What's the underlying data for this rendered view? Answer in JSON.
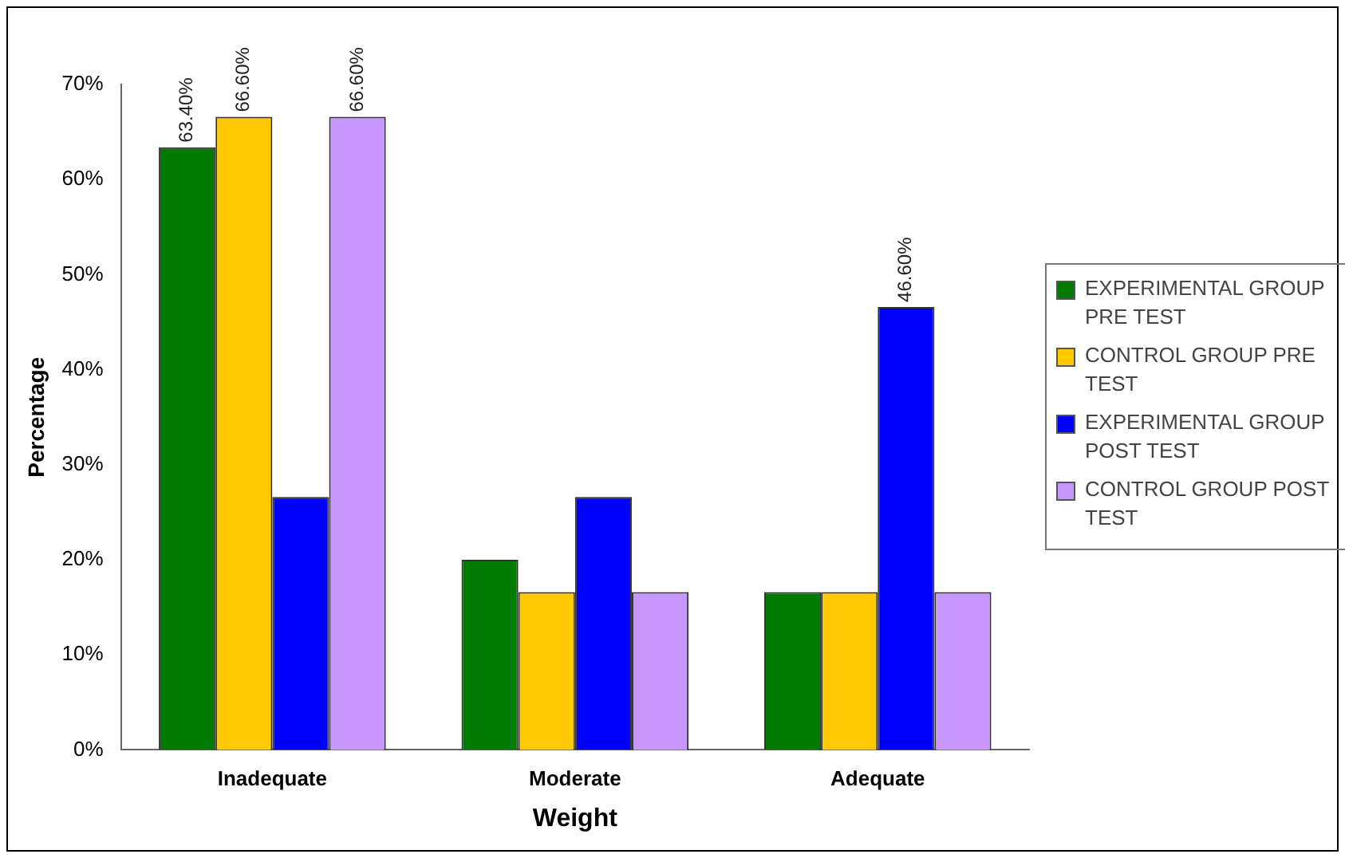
{
  "chart_data": {
    "type": "bar",
    "xlabel": "Weight",
    "ylabel": "Percentage",
    "categories": [
      "Inadequate",
      "Moderate",
      "Adequate"
    ],
    "series": [
      {
        "name": "EXPERIMENTAL GROUP PRE TEST",
        "color": "#007a00",
        "values": [
          63.4,
          20,
          16.6
        ],
        "value_labels": [
          "63.40%",
          null,
          null
        ]
      },
      {
        "name": "CONTROL GROUP PRE TEST",
        "color": "#ffc800",
        "values": [
          66.6,
          16.6,
          16.6
        ],
        "value_labels": [
          "66.60%",
          null,
          null
        ]
      },
      {
        "name": "EXPERIMENTAL GROUP  POST TEST",
        "color": "#0000ff",
        "values": [
          26.6,
          26.6,
          46.6
        ],
        "value_labels": [
          null,
          null,
          "46.60%"
        ]
      },
      {
        "name": "CONTROL GROUP POST TEST",
        "color": "#c896ff",
        "values": [
          66.6,
          16.6,
          16.6
        ],
        "value_labels": [
          "66.60%",
          null,
          null
        ]
      }
    ],
    "ylim": [
      0,
      70
    ],
    "yticks": [
      {
        "value": 0,
        "label": "0%"
      },
      {
        "value": 10,
        "label": "10%"
      },
      {
        "value": 20,
        "label": "20%"
      },
      {
        "value": 30,
        "label": "30%"
      },
      {
        "value": 40,
        "label": "40%"
      },
      {
        "value": 50,
        "label": "50%"
      },
      {
        "value": 60,
        "label": "60%"
      },
      {
        "value": 70,
        "label": "70%"
      }
    ],
    "grid": false,
    "legend": "right"
  }
}
